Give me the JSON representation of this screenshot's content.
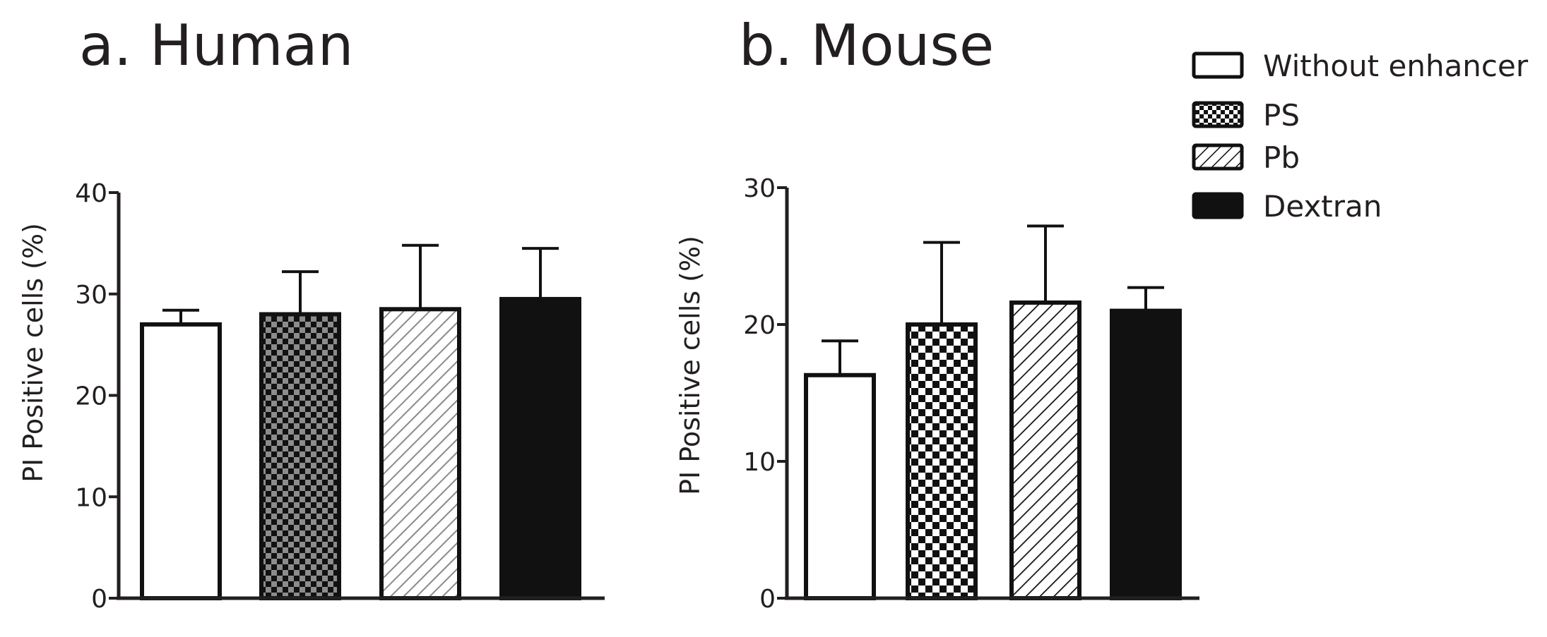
{
  "chart_data": [
    {
      "type": "bar",
      "title": "a. Human",
      "ylabel": "PI Positive cells (%)",
      "xlabel": "",
      "ylim": [
        0,
        40
      ],
      "yticks": [
        0,
        10,
        20,
        30,
        40
      ],
      "categories": [
        "Without enhancer",
        "PS",
        "Pb",
        "Dextran"
      ],
      "values": [
        27,
        28,
        28.5,
        29.5
      ],
      "errors": [
        1.4,
        4.2,
        6.3,
        5.0
      ],
      "grid": false
    },
    {
      "type": "bar",
      "title": "b. Mouse",
      "ylabel": "PI Positive cells (%)",
      "xlabel": "",
      "ylim": [
        0,
        30
      ],
      "yticks": [
        0,
        10,
        20,
        30
      ],
      "categories": [
        "Without enhancer",
        "PS",
        "Pb",
        "Dextran"
      ],
      "values": [
        16.3,
        20,
        21.6,
        21
      ],
      "errors": [
        2.5,
        6.0,
        5.6,
        1.7
      ],
      "grid": false
    }
  ],
  "legend": {
    "placement": "top-right",
    "items": [
      {
        "label": "Without enhancer",
        "pattern": "white"
      },
      {
        "label": "PS",
        "pattern": "checker"
      },
      {
        "label": "Pb",
        "pattern": "hatch"
      },
      {
        "label": "Dextran",
        "pattern": "black"
      }
    ]
  },
  "colors": {
    "ink": "#231f20",
    "fill": "#111111",
    "checker_light": "#909090",
    "hatch_bg": "#ffffff"
  }
}
